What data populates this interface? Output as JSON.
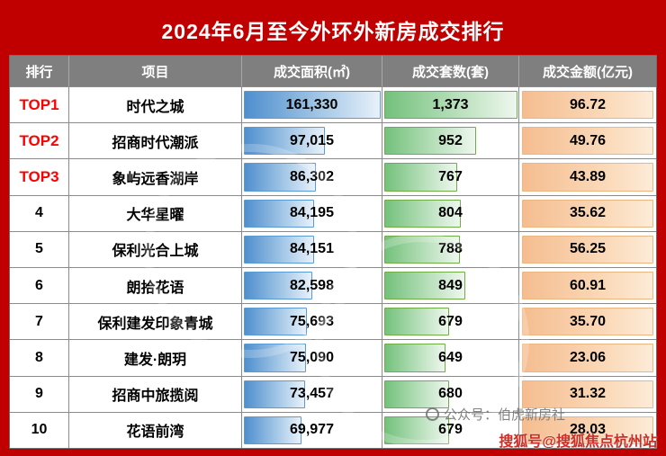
{
  "title": "2024年6月至今外环外新房成交排行",
  "table": {
    "headers": [
      "排行",
      "项目",
      "成交面积(㎡)",
      "成交套数(套)",
      "成交金额(亿元)"
    ],
    "rows": [
      {
        "rank": "TOP1",
        "top": true,
        "project": "时代之城",
        "area": "161,330",
        "area_val": 161330,
        "units": "1,373",
        "units_val": 1373,
        "amount": "96.72"
      },
      {
        "rank": "TOP2",
        "top": true,
        "project": "招商时代潮派",
        "area": "97,015",
        "area_val": 97015,
        "units": "952",
        "units_val": 952,
        "amount": "49.76"
      },
      {
        "rank": "TOP3",
        "top": true,
        "project": "象屿远香湖岸",
        "area": "86,302",
        "area_val": 86302,
        "units": "767",
        "units_val": 767,
        "amount": "43.89"
      },
      {
        "rank": "4",
        "top": false,
        "project": "大华星曜",
        "area": "84,195",
        "area_val": 84195,
        "units": "804",
        "units_val": 804,
        "amount": "35.62"
      },
      {
        "rank": "5",
        "top": false,
        "project": "保利光合上城",
        "area": "84,151",
        "area_val": 84151,
        "units": "788",
        "units_val": 788,
        "amount": "56.25"
      },
      {
        "rank": "6",
        "top": false,
        "project": "朗拾花语",
        "area": "82,598",
        "area_val": 82598,
        "units": "849",
        "units_val": 849,
        "amount": "60.91"
      },
      {
        "rank": "7",
        "top": false,
        "project": "保利建发印象青城",
        "area": "75,693",
        "area_val": 75693,
        "units": "679",
        "units_val": 679,
        "amount": "35.70"
      },
      {
        "rank": "8",
        "top": false,
        "project": "建发·朗玥",
        "area": "75,090",
        "area_val": 75090,
        "units": "649",
        "units_val": 649,
        "amount": "23.06"
      },
      {
        "rank": "9",
        "top": false,
        "project": "招商中旅揽阅",
        "area": "73,457",
        "area_val": 73457,
        "units": "680",
        "units_val": 680,
        "amount": "31.32"
      },
      {
        "rank": "10",
        "top": false,
        "project": "花语前湾",
        "area": "69,977",
        "area_val": 69977,
        "units": "679",
        "units_val": 679,
        "amount": "28.03"
      }
    ]
  },
  "watermarks": {
    "account": "公众号：伯虎新房社",
    "sohu": "搜狐号@搜狐焦点杭州站"
  },
  "colors": {
    "background": "#C00000",
    "header_bg": "#7F7F7F",
    "top_rank_text": "#FF0000",
    "area_bar": "#5B9BD5",
    "units_bar": "#70AD47",
    "amount_fill": "#F5BD90"
  }
}
